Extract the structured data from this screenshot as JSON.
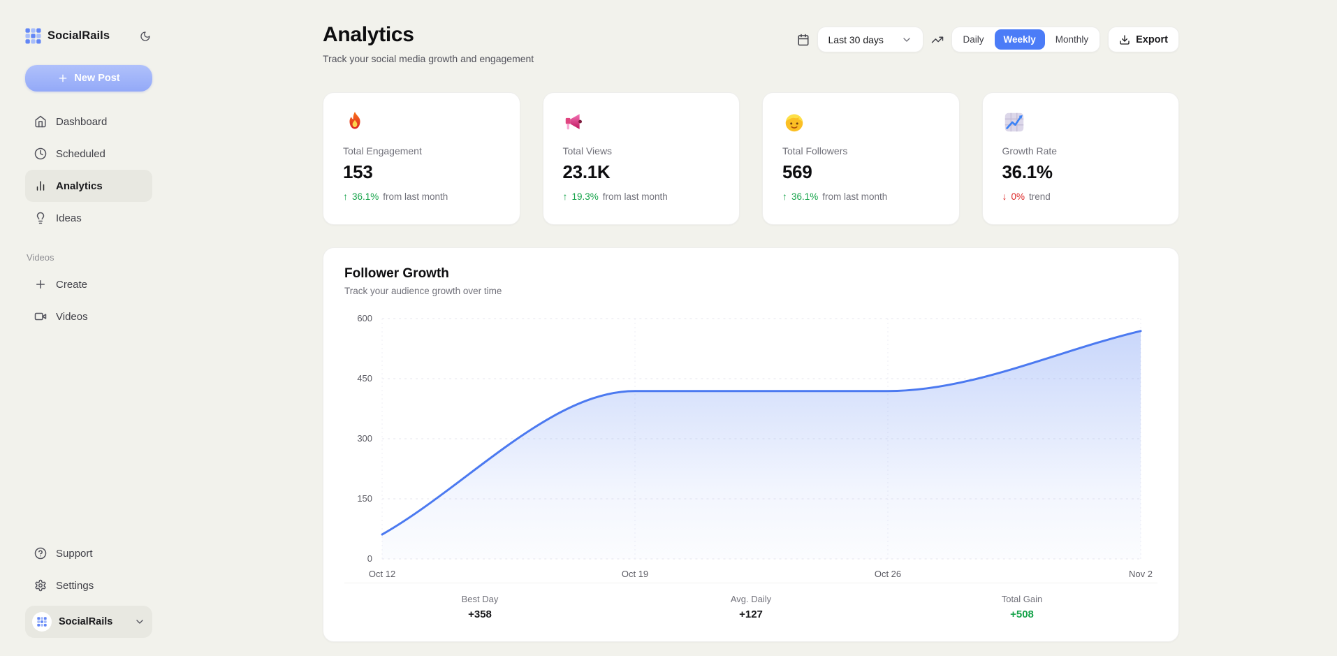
{
  "colors": {
    "accent": "#4b7cf7",
    "green": "#16a34a",
    "red": "#dc2626",
    "background": "#f2f2ec"
  },
  "sidebar": {
    "brand": "SocialRails",
    "theme_icon": "moon",
    "new_post_label": "New Post",
    "nav": [
      {
        "label": "Dashboard",
        "icon": "home",
        "active": false
      },
      {
        "label": "Scheduled",
        "icon": "clock",
        "active": false
      },
      {
        "label": "Analytics",
        "icon": "bar-chart",
        "active": true
      },
      {
        "label": "Ideas",
        "icon": "lightbulb",
        "active": false
      }
    ],
    "section_label": "Videos",
    "videos_nav": [
      {
        "label": "Create",
        "icon": "plus"
      },
      {
        "label": "Videos",
        "icon": "video-camera"
      }
    ],
    "footer_nav": [
      {
        "label": "Support",
        "icon": "help-circle"
      },
      {
        "label": "Settings",
        "icon": "gear"
      }
    ],
    "account_label": "SocialRails"
  },
  "header": {
    "title": "Analytics",
    "subtitle": "Track your social media growth and engagement",
    "date_range": "Last 30 days",
    "date_icon": "calendar",
    "trend_icon": "trending-up",
    "view_options": [
      "Daily",
      "Weekly",
      "Monthly"
    ],
    "view_selected": "Weekly",
    "export_label": "Export",
    "export_icon": "download"
  },
  "stat_cards": [
    {
      "icon": "fire",
      "label": "Total Engagement",
      "value": "153",
      "delta": "36.1%",
      "direction": "up",
      "note": "from last month"
    },
    {
      "icon": "megaphone",
      "label": "Total Views",
      "value": "23.1K",
      "delta": "19.3%",
      "direction": "up",
      "note": "from last month"
    },
    {
      "icon": "person-blond",
      "label": "Total Followers",
      "value": "569",
      "delta": "36.1%",
      "direction": "up",
      "note": "from last month"
    },
    {
      "icon": "chart-increasing",
      "label": "Growth Rate",
      "value": "36.1%",
      "delta": "0%",
      "direction": "down",
      "note": "trend"
    }
  ],
  "chart_card": {
    "title": "Follower Growth",
    "subtitle": "Track your audience growth over time",
    "stats": [
      {
        "label": "Best Day",
        "value": "+358",
        "highlight": false
      },
      {
        "label": "Avg. Daily",
        "value": "+127",
        "highlight": false
      },
      {
        "label": "Total Gain",
        "value": "+508",
        "highlight": true
      }
    ]
  },
  "chart_data": {
    "type": "area",
    "title": "Follower Growth",
    "x": [
      "Oct 12",
      "Oct 19",
      "Oct 26",
      "Nov 2"
    ],
    "series": [
      {
        "name": "Followers",
        "values": [
          61,
          419,
          419,
          569
        ]
      }
    ],
    "ylim": [
      0,
      600
    ],
    "yticks": [
      0,
      150,
      300,
      450,
      600
    ],
    "grid": "dashed",
    "legend": "none",
    "line_color": "#4b79f0",
    "fill": "vertical-gradient-fade"
  }
}
